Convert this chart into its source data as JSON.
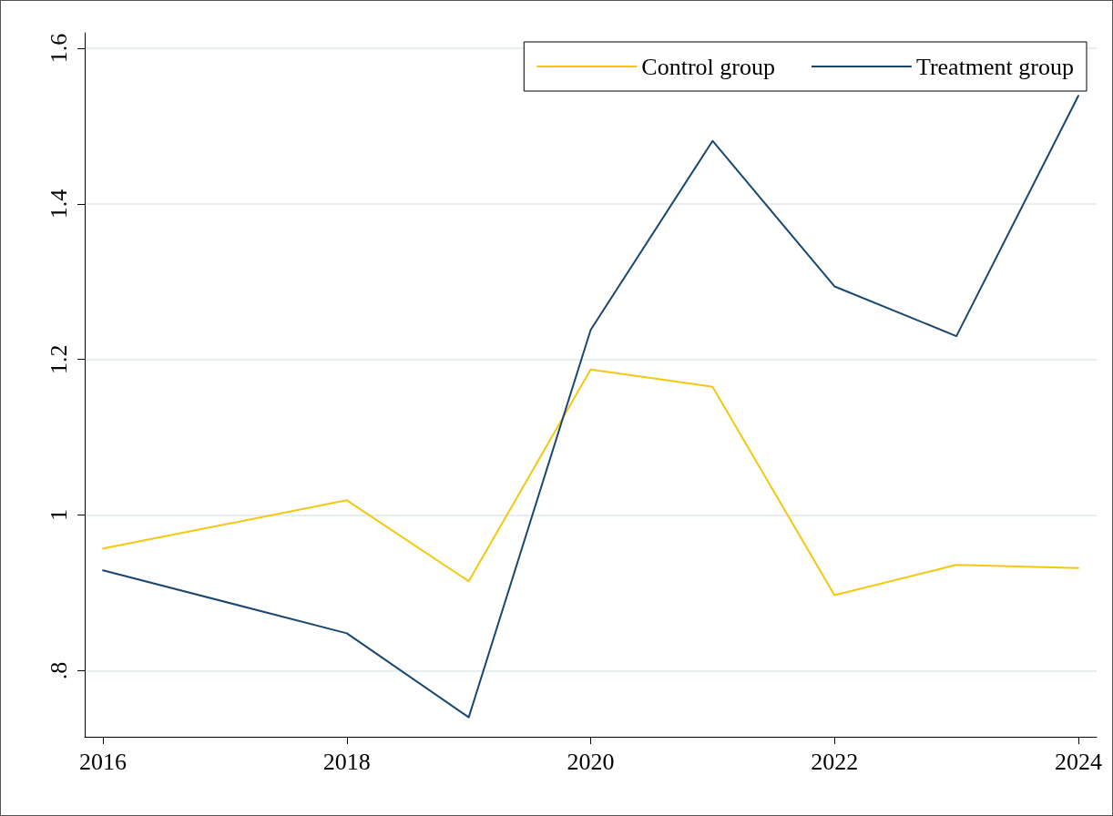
{
  "chart_data": {
    "type": "line",
    "x": [
      2016,
      2018,
      2019,
      2020,
      2021,
      2022,
      2023,
      2024
    ],
    "series": [
      {
        "name": "Control group",
        "color": "#f5c710",
        "values": [
          0.957,
          1.019,
          0.915,
          1.187,
          1.165,
          0.897,
          0.936,
          0.932
        ]
      },
      {
        "name": "Treatment group",
        "color": "#1a476f",
        "values": [
          0.929,
          0.848,
          0.74,
          1.238,
          1.481,
          1.294,
          1.23,
          1.539
        ]
      }
    ],
    "xlim": [
      2015.85,
      2024.15
    ],
    "xticks": [
      2016,
      2018,
      2020,
      2022,
      2024
    ],
    "ylim": [
      0.715,
      1.62
    ],
    "yticks": [
      {
        "value": 0.8,
        "label": ".8"
      },
      1,
      1.2,
      1.4,
      1.6
    ],
    "grid": "y",
    "legend": "top right",
    "marker": "none",
    "line_style": "solid"
  }
}
